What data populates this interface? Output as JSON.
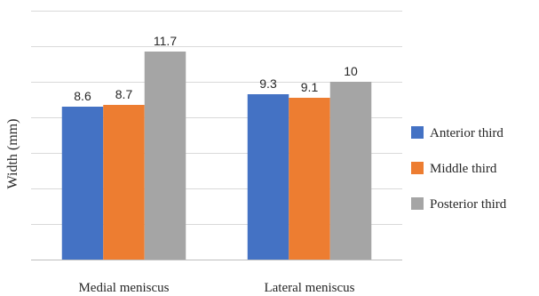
{
  "chart_data": {
    "type": "bar",
    "categories": [
      "Medial meniscus",
      "Lateral meniscus"
    ],
    "series": [
      {
        "name": "Anterior third",
        "color": "#4472c4",
        "values": [
          8.6,
          9.3
        ]
      },
      {
        "name": "Middle third",
        "color": "#ed7d31",
        "values": [
          8.7,
          9.1
        ]
      },
      {
        "name": "Posterior third",
        "color": "#a5a5a5",
        "values": [
          11.7,
          10
        ]
      }
    ],
    "ylabel": "Width (mm)",
    "xlabel": "",
    "ylim": [
      0,
      14
    ],
    "ytick_step": 2,
    "grid": true,
    "legend_position": "right",
    "data_labels": true
  }
}
